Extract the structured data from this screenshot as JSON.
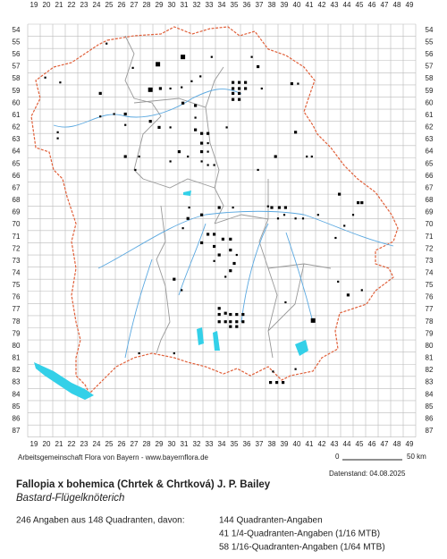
{
  "map": {
    "columns": [
      19,
      20,
      21,
      22,
      23,
      24,
      25,
      26,
      27,
      28,
      29,
      30,
      31,
      32,
      33,
      34,
      35,
      36,
      37,
      38,
      39,
      40,
      41,
      42,
      43,
      44,
      45,
      46,
      47,
      48,
      49
    ],
    "rows": [
      54,
      55,
      56,
      57,
      58,
      59,
      60,
      61,
      62,
      63,
      64,
      65,
      66,
      67,
      68,
      69,
      70,
      71,
      72,
      73,
      74,
      75,
      76,
      77,
      78,
      79,
      80,
      81,
      82,
      83,
      84,
      85,
      86,
      87
    ],
    "points": [
      [
        29.4,
        57.3,
        1
      ],
      [
        31.4,
        56.7,
        1
      ],
      [
        25.3,
        55.6,
        16
      ],
      [
        20.4,
        58.4,
        16
      ],
      [
        21.6,
        58.8,
        16
      ],
      [
        27.4,
        57.6,
        16
      ],
      [
        28.8,
        59.4,
        1
      ],
      [
        29.6,
        59.3,
        4
      ],
      [
        30.4,
        59.3,
        16
      ],
      [
        31.3,
        59.2,
        16
      ],
      [
        32.1,
        58.7,
        16
      ],
      [
        32.8,
        58.3,
        16
      ],
      [
        33.7,
        56.7,
        16
      ],
      [
        35.4,
        58.8,
        4
      ],
      [
        35.9,
        58.8,
        4
      ],
      [
        36.4,
        58.8,
        4
      ],
      [
        35.4,
        59.3,
        4
      ],
      [
        35.9,
        59.3,
        4
      ],
      [
        36.4,
        59.3,
        4
      ],
      [
        35.4,
        59.7,
        4
      ],
      [
        35.9,
        59.7,
        4
      ],
      [
        35.4,
        60.2,
        4
      ],
      [
        35.9,
        60.2,
        4
      ],
      [
        36.9,
        56.7,
        16
      ],
      [
        37.4,
        57.5,
        4
      ],
      [
        37.7,
        59.3,
        16
      ],
      [
        40.1,
        58.9,
        4
      ],
      [
        40.6,
        58.9,
        16
      ],
      [
        24.8,
        59.7,
        4
      ],
      [
        25.9,
        61.4,
        16
      ],
      [
        26.8,
        61.4,
        4
      ],
      [
        26.8,
        62.3,
        16
      ],
      [
        28.8,
        62,
        4
      ],
      [
        29.5,
        62.5,
        4
      ],
      [
        30.4,
        62.5,
        16
      ],
      [
        31.4,
        60.5,
        4
      ],
      [
        32.4,
        60.7,
        4
      ],
      [
        32.4,
        61.7,
        16
      ],
      [
        32.4,
        62.7,
        4
      ],
      [
        32.9,
        63,
        4
      ],
      [
        33.4,
        63,
        4
      ],
      [
        32.9,
        63.8,
        4
      ],
      [
        33.4,
        63.8,
        16
      ],
      [
        32.9,
        64.5,
        4
      ],
      [
        33.4,
        64.5,
        16
      ],
      [
        32.9,
        65.3,
        16
      ],
      [
        33.4,
        65.6,
        16
      ],
      [
        31.8,
        64.9,
        16
      ],
      [
        31.1,
        64.5,
        4
      ],
      [
        27.9,
        64.9,
        16
      ],
      [
        27.6,
        66,
        16
      ],
      [
        26.8,
        64.9,
        4
      ],
      [
        21.4,
        62.9,
        16
      ],
      [
        21.4,
        63.4,
        16
      ],
      [
        24.8,
        61.6,
        16
      ],
      [
        30.4,
        65.3,
        16
      ],
      [
        33.9,
        65.6,
        16
      ],
      [
        34.9,
        62.5,
        16
      ],
      [
        37.4,
        66,
        16
      ],
      [
        38.2,
        69,
        16
      ],
      [
        38.5,
        69.1,
        4
      ],
      [
        39.1,
        69.1,
        4
      ],
      [
        39.6,
        69.1,
        4
      ],
      [
        39.5,
        69.7,
        16
      ],
      [
        39,
        70,
        16
      ],
      [
        40.4,
        70,
        16
      ],
      [
        42.2,
        69.7,
        16
      ],
      [
        41,
        70,
        16
      ],
      [
        43.9,
        68,
        4
      ],
      [
        45.4,
        68.7,
        4
      ],
      [
        45.7,
        68.7,
        4
      ],
      [
        45,
        69.7,
        16
      ],
      [
        44.3,
        70.6,
        16
      ],
      [
        43.6,
        71.6,
        16
      ],
      [
        41.3,
        64.9,
        16
      ],
      [
        41.7,
        64.9,
        16
      ],
      [
        40.4,
        62.9,
        4
      ],
      [
        38.8,
        64.9,
        4
      ],
      [
        31.9,
        69.1,
        16
      ],
      [
        31.8,
        70,
        4
      ],
      [
        32.9,
        69.7,
        4
      ],
      [
        34.3,
        69.1,
        4
      ],
      [
        35.4,
        69.1,
        16
      ],
      [
        31.4,
        70.8,
        16
      ],
      [
        33.4,
        71.3,
        4
      ],
      [
        33.9,
        71.3,
        4
      ],
      [
        34.6,
        71.7,
        4
      ],
      [
        35.2,
        71.7,
        4
      ],
      [
        32.9,
        72,
        4
      ],
      [
        33.9,
        72.3,
        4
      ],
      [
        35.2,
        72.6,
        4
      ],
      [
        35.7,
        73,
        16
      ],
      [
        34.3,
        73,
        4
      ],
      [
        33.9,
        73.5,
        16
      ],
      [
        35.5,
        73.7,
        4
      ],
      [
        35.2,
        74.3,
        4
      ],
      [
        34.8,
        74.8,
        16
      ],
      [
        30.7,
        75,
        4
      ],
      [
        31.3,
        75.9,
        16
      ],
      [
        34.3,
        77.4,
        4
      ],
      [
        34.8,
        77.8,
        4
      ],
      [
        34.3,
        77.9,
        4
      ],
      [
        35.2,
        77.9,
        4
      ],
      [
        35.7,
        77.9,
        4
      ],
      [
        36.2,
        77.9,
        4
      ],
      [
        34.3,
        78.5,
        4
      ],
      [
        34.8,
        78.5,
        4
      ],
      [
        35.2,
        78.5,
        4
      ],
      [
        35.7,
        78.5,
        4
      ],
      [
        36.2,
        78.5,
        4
      ],
      [
        35.2,
        78.9,
        4
      ],
      [
        35.7,
        78.9,
        4
      ],
      [
        41.8,
        78.4,
        1
      ],
      [
        43.8,
        75.2,
        16
      ],
      [
        45.7,
        75.9,
        16
      ],
      [
        44.6,
        76.3,
        4
      ],
      [
        39.6,
        76.9,
        16
      ],
      [
        38.6,
        82.6,
        16
      ],
      [
        38.4,
        83.5,
        4
      ],
      [
        38.9,
        83.5,
        4
      ],
      [
        39.4,
        83.5,
        4
      ],
      [
        40.4,
        82.4,
        16
      ],
      [
        27.9,
        81.1,
        16
      ],
      [
        30.7,
        81.1,
        16
      ]
    ]
  },
  "footer": {
    "credit": "Arbeitsgemeinschaft Flora von Bayern - www.bayernflora.de",
    "scale_start": "0",
    "scale_end": "50 km",
    "date": "Datenstand: 04.08.2025"
  },
  "species": {
    "title": "Fallopia x bohemica (Chrtek & Chrtková) J. P. Bailey",
    "subtitle": "Bastard-Flügelknöterich"
  },
  "summary": {
    "total": "246 Angaben aus 148 Quadranten, davon:",
    "lines": [
      "144 Quadranten-Angaben",
      "41 1/4-Quadranten-Angaben (1/16 MTB)",
      "58 1/16-Quadranten-Angaben (1/64 MTB)"
    ]
  }
}
